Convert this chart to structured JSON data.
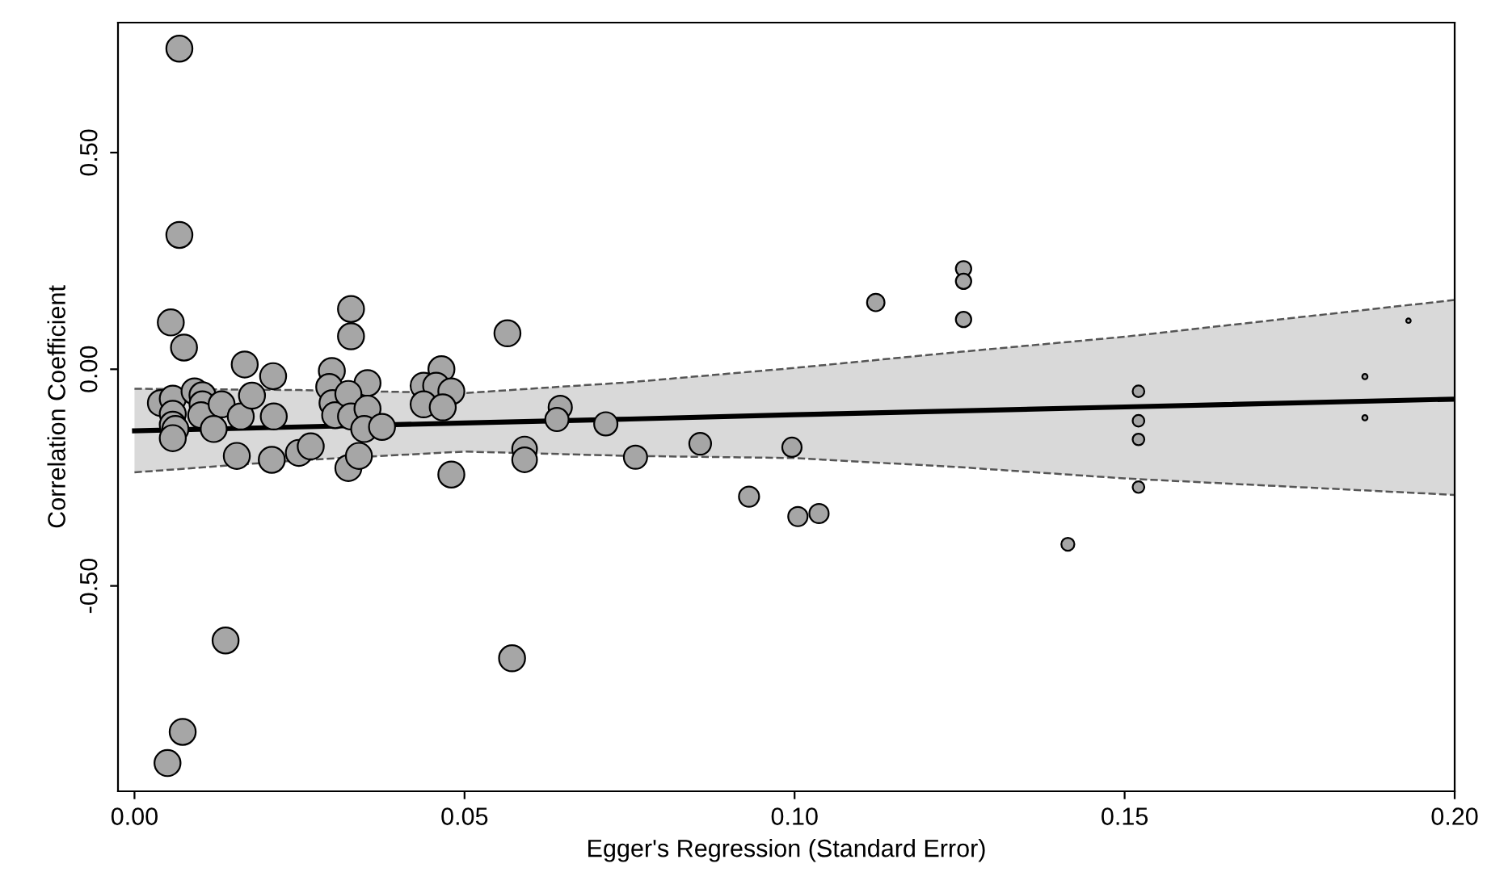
{
  "chart_data": {
    "type": "bubble",
    "xlabel": "Egger's Regression (Standard Error)",
    "ylabel": "Correlation Coefficient",
    "xlim": [
      -0.0025,
      0.2
    ],
    "ylim": [
      -0.974,
      0.8
    ],
    "xticks": [
      {
        "value": 0,
        "label": "0.00"
      },
      {
        "value": 0.05,
        "label": "0.05"
      },
      {
        "value": 0.1,
        "label": "0.10"
      },
      {
        "value": 0.15,
        "label": "0.15"
      },
      {
        "value": 0.2,
        "label": "0.20"
      }
    ],
    "yticks": [
      {
        "value": -0.5,
        "label": "-0.50"
      },
      {
        "value": 0,
        "label": "0.00"
      },
      {
        "value": 0.5,
        "label": "0.50"
      }
    ],
    "grid": false,
    "legend": false,
    "series": [
      {
        "color": "#a6a6a6",
        "marker": "circle",
        "x": [
          0.0068,
          0.0068,
          0.0055,
          0.0075,
          0.0167,
          0.021,
          0.0328,
          0.0328,
          0.0565,
          0.0299,
          0.0353,
          0.0465,
          0.0438,
          0.0457,
          0.048,
          0.0438,
          0.0467,
          0.004,
          0.0058,
          0.0058,
          0.0058,
          0.0062,
          0.0058,
          0.0091,
          0.0103,
          0.0103,
          0.0101,
          0.0132,
          0.012,
          0.0161,
          0.0178,
          0.0211,
          0.0155,
          0.0208,
          0.0249,
          0.0267,
          0.0295,
          0.03,
          0.0304,
          0.0324,
          0.0328,
          0.0353,
          0.0348,
          0.0375,
          0.0324,
          0.034,
          0.048,
          0.0138,
          0.0572,
          0.0073,
          0.005,
          0.0591,
          0.0591,
          0.0645,
          0.064,
          0.0714,
          0.0759,
          0.0857,
          0.0931,
          0.0996,
          0.1005,
          0.1037,
          0.1123,
          0.1256,
          0.1256,
          0.1256,
          0.1414,
          0.1521,
          0.1521,
          0.1521,
          0.1521,
          0.1864,
          0.1864,
          0.193
        ],
        "values": [
          0.74,
          0.31,
          0.108,
          0.05,
          0.011,
          -0.016,
          0.139,
          0.076,
          0.083,
          -0.004,
          -0.032,
          0.0,
          -0.038,
          -0.038,
          -0.051,
          -0.081,
          -0.088,
          -0.078,
          -0.068,
          -0.103,
          -0.128,
          -0.138,
          -0.159,
          -0.051,
          -0.06,
          -0.081,
          -0.106,
          -0.081,
          -0.138,
          -0.109,
          -0.061,
          -0.109,
          -0.2,
          -0.209,
          -0.193,
          -0.178,
          -0.041,
          -0.078,
          -0.106,
          -0.057,
          -0.109,
          -0.091,
          -0.138,
          -0.133,
          -0.228,
          -0.2,
          -0.243,
          -0.626,
          -0.667,
          -0.837,
          -0.909,
          -0.184,
          -0.209,
          -0.088,
          -0.116,
          -0.126,
          -0.203,
          -0.172,
          -0.294,
          -0.18,
          -0.34,
          -0.333,
          0.154,
          0.232,
          0.203,
          0.115,
          -0.404,
          -0.051,
          -0.119,
          -0.162,
          -0.272,
          -0.017,
          -0.112,
          0.112
        ],
        "sizes": [
          1,
          1,
          1,
          1,
          1,
          1,
          1,
          1,
          1,
          1,
          1,
          1,
          1,
          1,
          1,
          1,
          1,
          1,
          1,
          1,
          1,
          1,
          1,
          1,
          1,
          1,
          1,
          1,
          1,
          1,
          1,
          1,
          1,
          1,
          1,
          1,
          1,
          1,
          1,
          1,
          1,
          1,
          1,
          1,
          1,
          1,
          1,
          1,
          1,
          1,
          1,
          0.9,
          0.9,
          0.8,
          0.8,
          0.8,
          0.8,
          0.7,
          0.6,
          0.55,
          0.55,
          0.55,
          0.45,
          0.35,
          0.35,
          0.35,
          0.25,
          0.2,
          0.2,
          0.2,
          0.2,
          0.04,
          0.04,
          0.03
        ]
      },
      {
        "type": "line",
        "color": "#000000",
        "x": [
          0,
          0.025,
          0.05,
          0.075,
          0.1,
          0.125,
          0.15,
          0.2
        ],
        "values": [
          -0.142,
          -0.133,
          -0.124,
          -0.115,
          -0.105,
          -0.096,
          -0.087,
          -0.069
        ],
        "lower": [
          -0.238,
          -0.21,
          -0.19,
          -0.2,
          -0.205,
          -0.226,
          -0.252,
          -0.29
        ],
        "upper": [
          -0.045,
          -0.048,
          -0.055,
          -0.03,
          0.003,
          0.04,
          0.075,
          0.16
        ]
      },
      {
        "type": "line",
        "color": "#555555",
        "line_style": "dashed",
        "x": [
          0,
          0.025,
          0.05,
          0.075,
          0.1,
          0.125,
          0.15,
          0.2
        ],
        "values": [
          -0.238,
          -0.21,
          -0.19,
          -0.2,
          -0.205,
          -0.226,
          -0.252,
          -0.29
        ]
      },
      {
        "type": "line",
        "color": "#555555",
        "line_style": "dashed",
        "x": [
          0,
          0.025,
          0.05,
          0.075,
          0.1,
          0.125,
          0.15,
          0.2
        ],
        "values": [
          -0.045,
          -0.048,
          -0.055,
          -0.03,
          0.003,
          0.04,
          0.075,
          0.16
        ]
      }
    ]
  }
}
